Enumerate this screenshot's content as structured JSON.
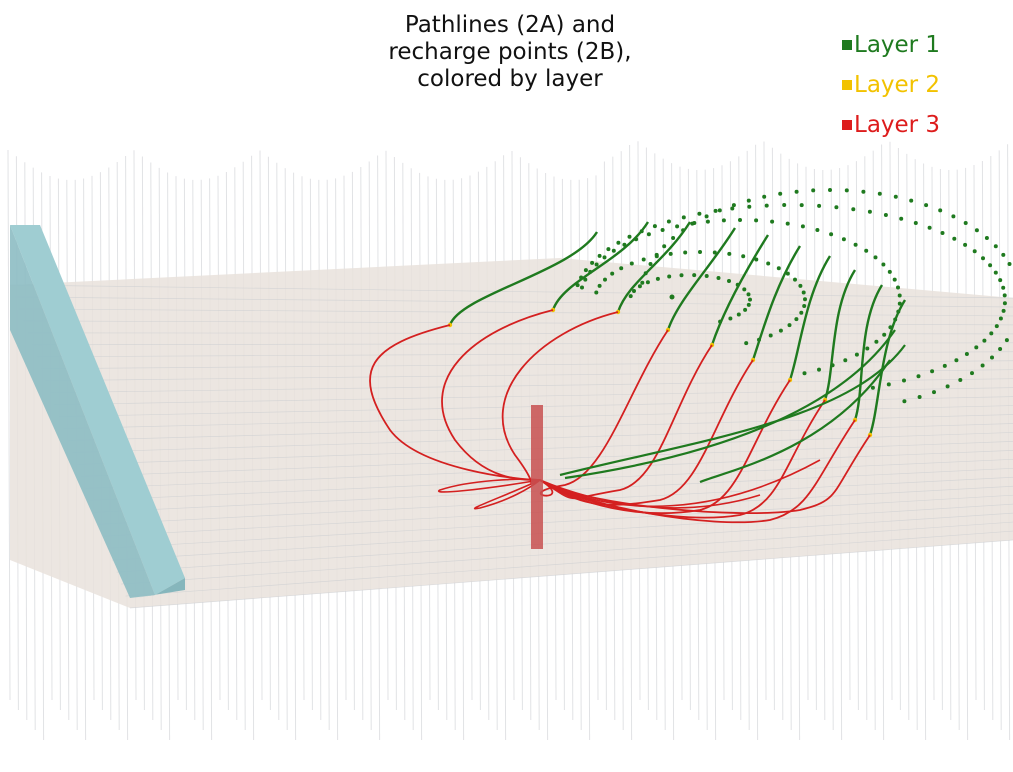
{
  "title": {
    "line1": "Pathlines (2A) and",
    "line2": "recharge points (2B),",
    "line3": "colored by layer"
  },
  "legend": [
    {
      "label": "Layer 1",
      "color": "#1f7a1f"
    },
    {
      "label": "Layer 2",
      "color": "#f2c200"
    },
    {
      "label": "Layer 3",
      "color": "#dd1c1c"
    }
  ],
  "colors": {
    "layer1": "#1f7a1f",
    "layer2": "#f2c200",
    "layer3": "#d42020",
    "grid_plane": "#e9e2dc",
    "grid_lines": "#c9ccd0",
    "river_wall": "#8fc3c8",
    "well": "#c85050"
  }
}
